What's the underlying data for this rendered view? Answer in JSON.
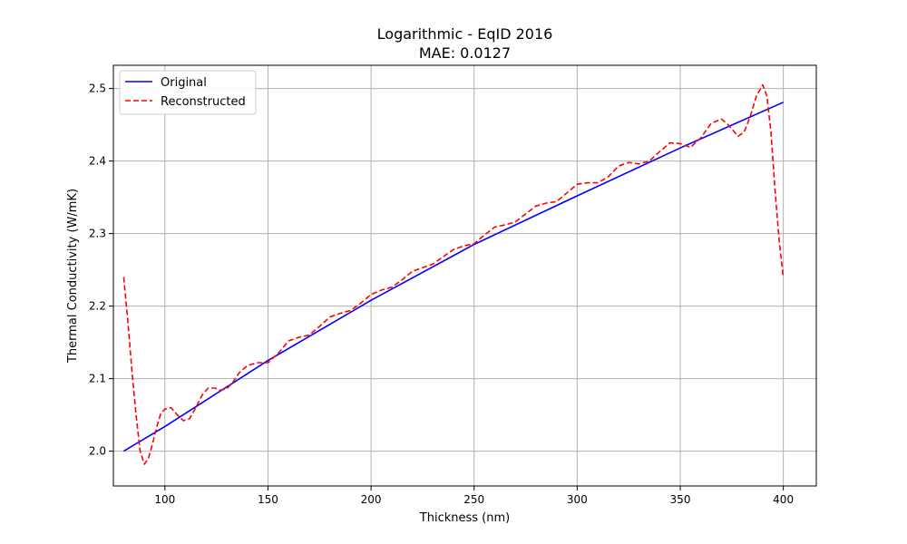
{
  "chart_data": {
    "type": "line",
    "title": "Logarithmic - EqID 2016",
    "subtitle": "MAE: 0.0127",
    "xlabel": "Thickness (nm)",
    "ylabel": "Thermal Conductivity (W/mK)",
    "xlim": [
      75,
      416
    ],
    "ylim": [
      1.952,
      2.532
    ],
    "x_ticks": [
      100,
      150,
      200,
      250,
      300,
      350,
      400
    ],
    "y_ticks": [
      2.0,
      2.1,
      2.2,
      2.3,
      2.4,
      2.5
    ],
    "x_tick_labels": [
      "100",
      "150",
      "200",
      "250",
      "300",
      "350",
      "400"
    ],
    "y_tick_labels": [
      "2.0",
      "2.1",
      "2.2",
      "2.3",
      "2.4",
      "2.5"
    ],
    "grid": true,
    "legend_position": "top-left",
    "series": [
      {
        "name": "Original",
        "color": "#0000ff",
        "dash": "solid",
        "x": [
          80,
          100,
          150,
          200,
          250,
          300,
          350,
          400
        ],
        "y": [
          2.0,
          2.034,
          2.125,
          2.208,
          2.285,
          2.352,
          2.418,
          2.481
        ]
      },
      {
        "name": "Reconstructed",
        "color": "#ff0000",
        "dash": "dashed",
        "x": [
          80,
          82,
          84,
          86,
          88,
          90,
          92,
          94,
          96,
          98,
          100,
          103,
          106,
          109,
          112,
          115,
          118,
          121,
          124,
          127,
          130,
          133,
          136,
          140,
          145,
          150,
          155,
          160,
          165,
          170,
          175,
          180,
          185,
          190,
          195,
          200,
          205,
          210,
          215,
          220,
          225,
          230,
          235,
          240,
          245,
          250,
          255,
          260,
          265,
          270,
          275,
          280,
          285,
          290,
          295,
          300,
          305,
          310,
          315,
          320,
          325,
          330,
          335,
          340,
          345,
          350,
          355,
          360,
          365,
          370,
          374,
          378,
          381,
          384,
          387,
          390,
          392,
          394,
          396,
          398,
          400
        ],
        "y": [
          2.24,
          2.18,
          2.11,
          2.05,
          2.0,
          1.982,
          1.99,
          2.01,
          2.033,
          2.052,
          2.058,
          2.06,
          2.05,
          2.042,
          2.045,
          2.06,
          2.077,
          2.087,
          2.087,
          2.084,
          2.086,
          2.095,
          2.108,
          2.118,
          2.122,
          2.122,
          2.135,
          2.152,
          2.157,
          2.16,
          2.172,
          2.185,
          2.19,
          2.194,
          2.204,
          2.216,
          2.222,
          2.226,
          2.236,
          2.248,
          2.253,
          2.258,
          2.268,
          2.278,
          2.283,
          2.286,
          2.298,
          2.309,
          2.312,
          2.316,
          2.327,
          2.338,
          2.342,
          2.344,
          2.356,
          2.368,
          2.37,
          2.37,
          2.378,
          2.393,
          2.398,
          2.396,
          2.4,
          2.413,
          2.425,
          2.424,
          2.419,
          2.432,
          2.452,
          2.458,
          2.448,
          2.434,
          2.44,
          2.462,
          2.49,
          2.505,
          2.49,
          2.44,
          2.36,
          2.29,
          2.24
        ]
      }
    ]
  }
}
